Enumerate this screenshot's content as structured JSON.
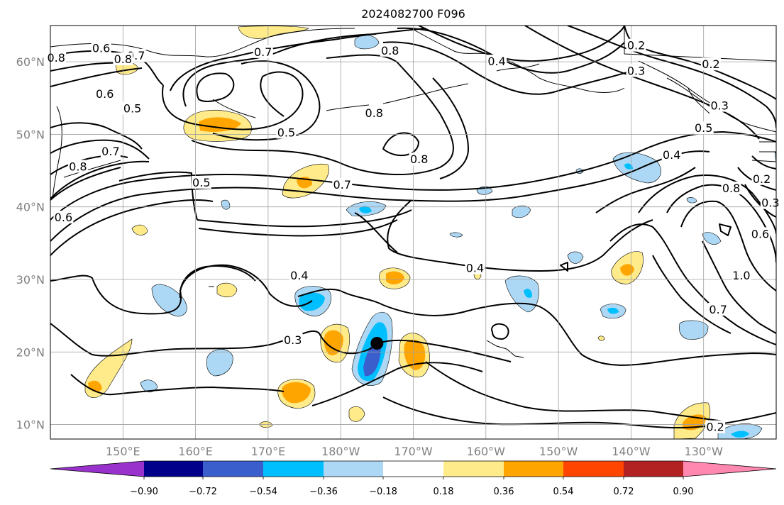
{
  "title": "2024082700 F096",
  "map": {
    "projection": "PlateCarree",
    "lon_range": [
      140,
      240
    ],
    "lat_range": [
      8,
      65
    ],
    "lon_ticks": [
      "150°E",
      "160°E",
      "170°E",
      "180°W",
      "170°W",
      "160°W",
      "150°W",
      "140°W",
      "130°W"
    ],
    "lat_ticks": [
      "10°N",
      "20°N",
      "30°N",
      "40°N",
      "50°N",
      "60°N"
    ],
    "gridlines": true,
    "gridline_color": "#a0a0a0",
    "coast_color": "#000000",
    "marker": {
      "label": "storm-center",
      "lon": 185.0,
      "lat": 21.2,
      "color": "#000000"
    }
  },
  "colorbar": {
    "ticks": [
      "−0.90",
      "−0.72",
      "−0.54",
      "−0.36",
      "−0.18",
      "0.18",
      "0.36",
      "0.54",
      "0.72",
      "0.90"
    ],
    "colors": [
      "#9932cc",
      "#00008b",
      "#3a5fcd",
      "#00bfff",
      "#add8f5",
      "#ffffff",
      "#ffeb8a",
      "#ffa500",
      "#ff4500",
      "#b22222",
      "#ff88b0"
    ],
    "extend": "both"
  },
  "contour_labels": [
    {
      "text": "0.8",
      "lon": 140.8,
      "lat": 60.5
    },
    {
      "text": "0.6",
      "lon": 147,
      "lat": 61.8
    },
    {
      "text": "0.7",
      "lon": 151.8,
      "lat": 60.8
    },
    {
      "text": "0.8",
      "lon": 150,
      "lat": 60.3
    },
    {
      "text": "0.6",
      "lon": 147.5,
      "lat": 55.5
    },
    {
      "text": "0.5",
      "lon": 151.3,
      "lat": 53.5
    },
    {
      "text": "0.7",
      "lon": 169.3,
      "lat": 61.3
    },
    {
      "text": "0.5",
      "lon": 172.5,
      "lat": 50.2
    },
    {
      "text": "0.8",
      "lon": 186.8,
      "lat": 61.5
    },
    {
      "text": "0.8",
      "lon": 184.6,
      "lat": 52.9
    },
    {
      "text": "0.8",
      "lon": 190.8,
      "lat": 46.5
    },
    {
      "text": "0.7",
      "lon": 148.3,
      "lat": 47.6
    },
    {
      "text": "0.8",
      "lon": 143.8,
      "lat": 45.5
    },
    {
      "text": "0.6",
      "lon": 141.8,
      "lat": 38.5
    },
    {
      "text": "0.5",
      "lon": 160.8,
      "lat": 43.3
    },
    {
      "text": "0.7",
      "lon": 180.2,
      "lat": 43.0
    },
    {
      "text": "0.4",
      "lon": 201.5,
      "lat": 60.0
    },
    {
      "text": "0.2",
      "lon": 220.7,
      "lat": 62.2
    },
    {
      "text": "0.3",
      "lon": 220.7,
      "lat": 58.7
    },
    {
      "text": "0.2",
      "lon": 231,
      "lat": 59.6
    },
    {
      "text": "0.3",
      "lon": 232.2,
      "lat": 53.9
    },
    {
      "text": "0.5",
      "lon": 230,
      "lat": 50.8
    },
    {
      "text": "0.4",
      "lon": 225.6,
      "lat": 47.1
    },
    {
      "text": "0.8",
      "lon": 233.8,
      "lat": 42.5
    },
    {
      "text": "0.2",
      "lon": 238,
      "lat": 43.8
    },
    {
      "text": "0.3",
      "lon": 239.2,
      "lat": 40.5
    },
    {
      "text": "0.6",
      "lon": 237.8,
      "lat": 36.2
    },
    {
      "text": "1.0",
      "lon": 235.2,
      "lat": 30.5
    },
    {
      "text": "0.7",
      "lon": 232,
      "lat": 25.8
    },
    {
      "text": "0.4",
      "lon": 174.3,
      "lat": 30.5
    },
    {
      "text": "0.4",
      "lon": 198.5,
      "lat": 31.5
    },
    {
      "text": "0.3",
      "lon": 173.4,
      "lat": 21.6
    },
    {
      "text": "0.2",
      "lon": 231.6,
      "lat": 9.6
    }
  ]
}
